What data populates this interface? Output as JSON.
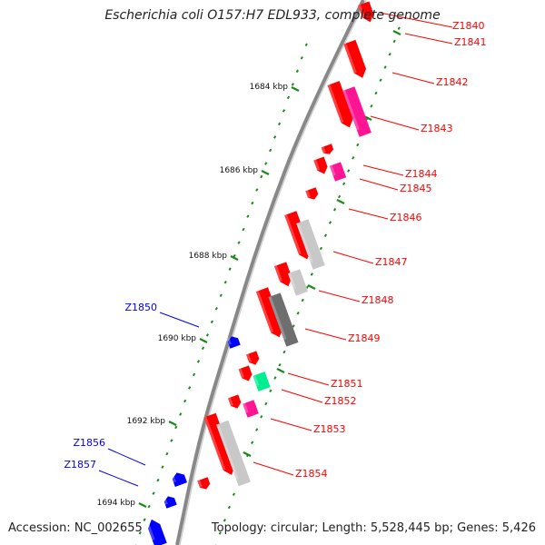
{
  "title": "Escherichia coli O157:H7 EDL933, complete genome",
  "accession": "Accession: NC_002655",
  "summary": "Topology: circular; Length: 5,528,445 bp; Genes: 5,426",
  "colors": {
    "backbone": "#888888",
    "forward_gene": "#ff0000",
    "reverse_gene": "#0000ff",
    "magenta": "#ff1493",
    "gray_light": "#c8c8c8",
    "gray_dark": "#6e6e6e",
    "green": "#00ee90",
    "tick_major": "#1a8a1a",
    "tick_minor": "#1a8a1a"
  },
  "ticks": [
    {
      "label": "1684 kbp"
    },
    {
      "label": "1686 kbp"
    },
    {
      "label": "1688 kbp"
    },
    {
      "label": "1690 kbp"
    },
    {
      "label": "1692 kbp"
    },
    {
      "label": "1694 kbp"
    }
  ],
  "genes": [
    {
      "name": "Z1840",
      "strand": "forward"
    },
    {
      "name": "Z1841",
      "strand": "forward"
    },
    {
      "name": "Z1842",
      "strand": "forward"
    },
    {
      "name": "Z1843",
      "strand": "forward"
    },
    {
      "name": "Z1844",
      "strand": "forward"
    },
    {
      "name": "Z1845",
      "strand": "forward"
    },
    {
      "name": "Z1846",
      "strand": "forward"
    },
    {
      "name": "Z1847",
      "strand": "forward"
    },
    {
      "name": "Z1848",
      "strand": "forward"
    },
    {
      "name": "Z1849",
      "strand": "forward"
    },
    {
      "name": "Z1850",
      "strand": "reverse"
    },
    {
      "name": "Z1851",
      "strand": "forward"
    },
    {
      "name": "Z1852",
      "strand": "forward"
    },
    {
      "name": "Z1853",
      "strand": "forward"
    },
    {
      "name": "Z1854",
      "strand": "forward"
    },
    {
      "name": "Z1856",
      "strand": "reverse"
    },
    {
      "name": "Z1857",
      "strand": "reverse"
    }
  ]
}
